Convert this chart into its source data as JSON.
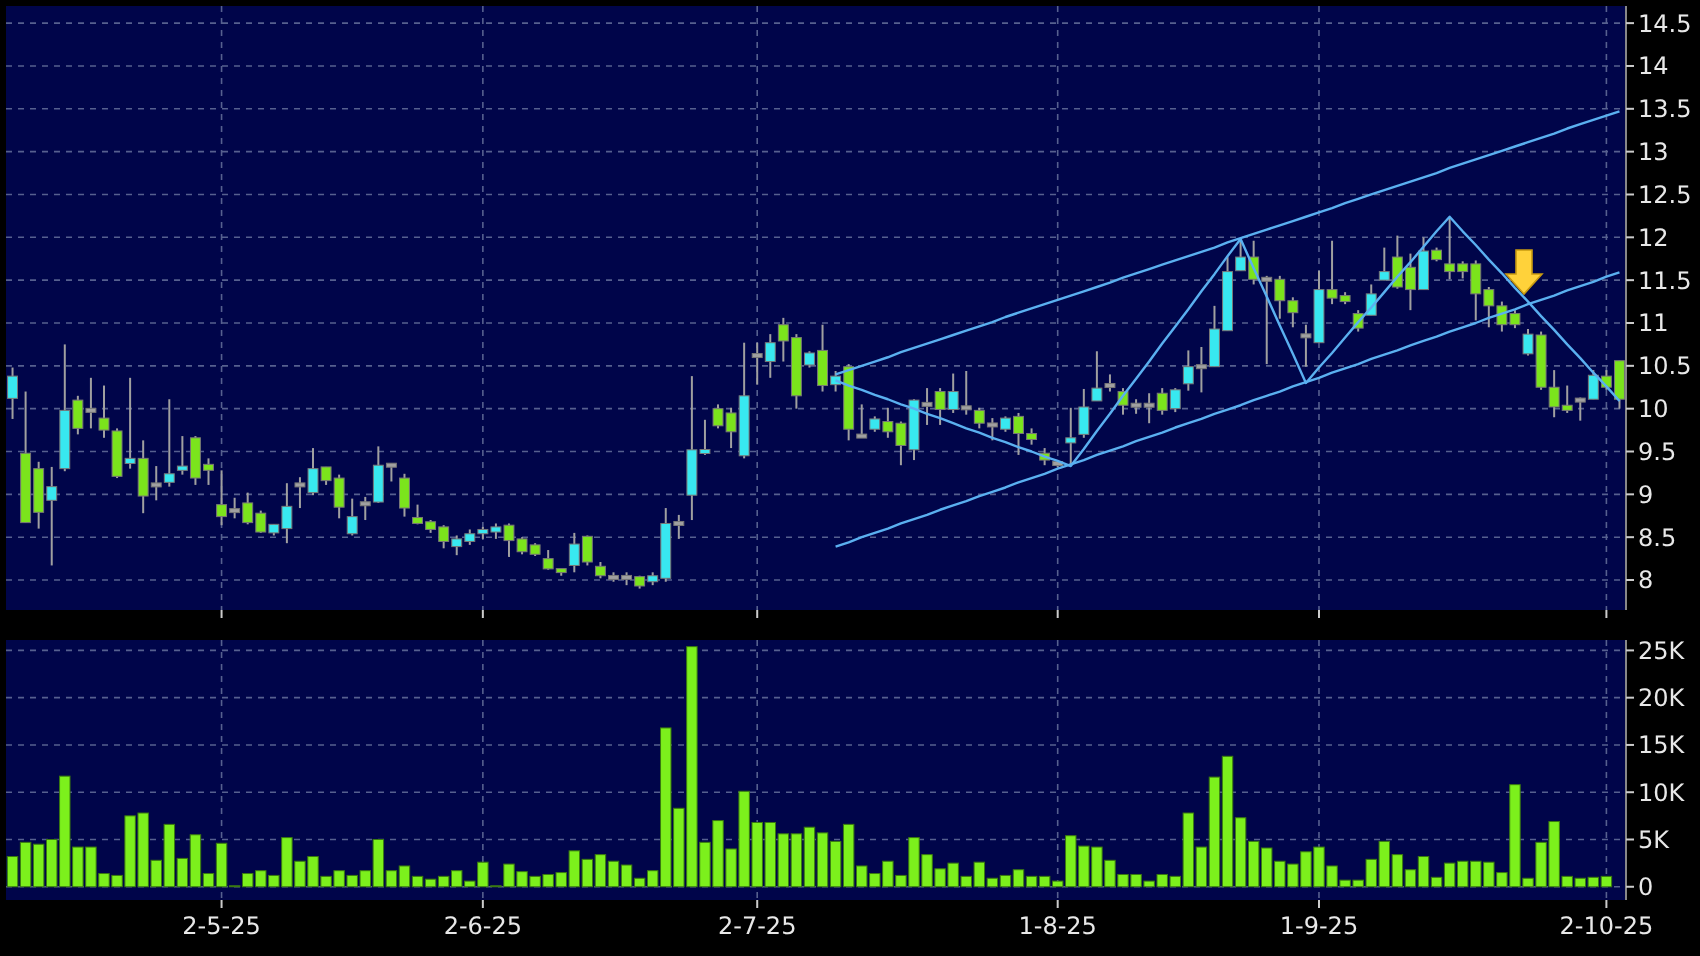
{
  "chart_data": [
    {
      "type": "candlestick",
      "categories": [
        null,
        null,
        null,
        null,
        null,
        null,
        null,
        null,
        null,
        null,
        null,
        null,
        null,
        null,
        null,
        null,
        null,
        null,
        null,
        null,
        null,
        null,
        null,
        null,
        null,
        null,
        null,
        null,
        null,
        null,
        null,
        null,
        null,
        null,
        null,
        null,
        null,
        null,
        null,
        null,
        null,
        null,
        null,
        null,
        null,
        null,
        null,
        null,
        null,
        null,
        null,
        null,
        null,
        null,
        null,
        null,
        null,
        null,
        null,
        null,
        null,
        null,
        null,
        null,
        null,
        null,
        null,
        null,
        null,
        null,
        null,
        null,
        null,
        null,
        null,
        null,
        null,
        null,
        null,
        null,
        null,
        null,
        null,
        null,
        null,
        null,
        null,
        null,
        null,
        null,
        null,
        null,
        null,
        null,
        null,
        null,
        null,
        null,
        null,
        null,
        null,
        null,
        null,
        null,
        null,
        null,
        null,
        null,
        null,
        null,
        null,
        null,
        null,
        null,
        null,
        null,
        null,
        null,
        null,
        null,
        null,
        null,
        null,
        null
      ],
      "ohlc": [
        [
          10.12,
          10.48,
          9.88,
          10.38
        ],
        [
          9.48,
          10.2,
          8.67,
          8.67
        ],
        [
          9.3,
          9.38,
          8.6,
          8.79
        ],
        [
          8.93,
          9.32,
          8.17,
          9.09
        ],
        [
          9.3,
          10.75,
          9.27,
          9.98
        ],
        [
          10.1,
          10.15,
          9.7,
          9.77
        ],
        [
          9.98,
          10.36,
          9.77,
          9.98
        ],
        [
          9.89,
          10.27,
          9.66,
          9.75
        ],
        [
          9.74,
          9.77,
          9.19,
          9.21
        ],
        [
          9.36,
          10.36,
          9.3,
          9.42
        ],
        [
          9.42,
          9.63,
          8.78,
          8.98
        ],
        [
          9.11,
          9.33,
          8.93,
          9.11
        ],
        [
          9.14,
          10.11,
          9.09,
          9.24
        ],
        [
          9.28,
          9.68,
          9.23,
          9.33
        ],
        [
          9.66,
          9.68,
          9.11,
          9.19
        ],
        [
          9.35,
          9.42,
          9.11,
          9.28
        ],
        [
          8.88,
          9.28,
          8.64,
          8.74
        ],
        [
          8.81,
          8.96,
          8.72,
          8.81
        ],
        [
          8.9,
          9.02,
          8.65,
          8.67
        ],
        [
          8.78,
          8.81,
          8.55,
          8.56
        ],
        [
          8.55,
          8.65,
          8.52,
          8.65
        ],
        [
          8.6,
          9.13,
          8.43,
          8.86
        ],
        [
          9.11,
          9.2,
          8.84,
          9.11
        ],
        [
          9.02,
          9.54,
          8.99,
          9.3
        ],
        [
          9.32,
          9.32,
          9.11,
          9.16
        ],
        [
          9.19,
          9.23,
          8.72,
          8.85
        ],
        [
          8.54,
          8.95,
          8.52,
          8.74
        ],
        [
          8.89,
          8.97,
          8.7,
          8.89
        ],
        [
          8.91,
          9.56,
          8.9,
          9.34
        ],
        [
          9.34,
          9.34,
          9.15,
          9.34
        ],
        [
          9.19,
          9.24,
          8.74,
          8.84
        ],
        [
          8.73,
          8.88,
          8.65,
          8.66
        ],
        [
          8.68,
          8.7,
          8.55,
          8.59
        ],
        [
          8.62,
          8.64,
          8.37,
          8.45
        ],
        [
          8.39,
          8.52,
          8.29,
          8.48
        ],
        [
          8.45,
          8.59,
          8.41,
          8.54
        ],
        [
          8.54,
          8.62,
          8.48,
          8.59
        ],
        [
          8.56,
          8.66,
          8.48,
          8.62
        ],
        [
          8.64,
          8.66,
          8.27,
          8.46
        ],
        [
          8.48,
          8.5,
          8.3,
          8.33
        ],
        [
          8.41,
          8.43,
          8.28,
          8.3
        ],
        [
          8.25,
          8.35,
          8.12,
          8.13
        ],
        [
          8.13,
          8.13,
          8.05,
          8.09
        ],
        [
          8.17,
          8.55,
          8.09,
          8.42
        ],
        [
          8.51,
          8.52,
          8.17,
          8.21
        ],
        [
          8.16,
          8.21,
          8.02,
          8.05
        ],
        [
          8.03,
          8.09,
          7.98,
          8.03
        ],
        [
          8.03,
          8.09,
          7.94,
          8.03
        ],
        [
          8.04,
          8.05,
          7.9,
          7.93
        ],
        [
          7.98,
          8.09,
          7.94,
          8.05
        ],
        [
          8.02,
          8.84,
          7.98,
          8.66
        ],
        [
          8.66,
          8.76,
          8.48,
          8.66
        ],
        [
          8.99,
          10.38,
          8.7,
          9.52
        ],
        [
          9.48,
          9.87,
          9.46,
          9.52
        ],
        [
          10.0,
          10.05,
          9.77,
          9.8
        ],
        [
          9.95,
          10.01,
          9.54,
          9.73
        ],
        [
          9.45,
          10.77,
          9.42,
          10.15
        ],
        [
          10.62,
          10.77,
          10.28,
          10.62
        ],
        [
          10.55,
          10.87,
          10.36,
          10.77
        ],
        [
          10.98,
          11.06,
          10.55,
          10.79
        ],
        [
          10.83,
          10.87,
          10.0,
          10.15
        ],
        [
          10.51,
          10.67,
          10.48,
          10.65
        ],
        [
          10.68,
          10.98,
          10.2,
          10.27
        ],
        [
          10.28,
          10.44,
          10.2,
          10.38
        ],
        [
          10.49,
          10.52,
          9.63,
          9.76
        ],
        [
          9.68,
          10.05,
          9.66,
          9.68
        ],
        [
          9.76,
          9.91,
          9.73,
          9.88
        ],
        [
          9.85,
          10.01,
          9.66,
          9.73
        ],
        [
          9.83,
          9.85,
          9.34,
          9.57
        ],
        [
          9.52,
          10.11,
          9.4,
          10.1
        ],
        [
          10.05,
          10.24,
          9.81,
          10.05
        ],
        [
          10.2,
          10.24,
          9.81,
          9.99
        ],
        [
          9.99,
          10.41,
          9.95,
          10.2
        ],
        [
          10.01,
          10.44,
          9.93,
          10.01
        ],
        [
          9.98,
          10.01,
          9.77,
          9.83
        ],
        [
          9.81,
          9.89,
          9.63,
          9.81
        ],
        [
          9.76,
          9.91,
          9.73,
          9.89
        ],
        [
          9.91,
          9.95,
          9.46,
          9.71
        ],
        [
          9.71,
          9.77,
          9.58,
          9.64
        ],
        [
          9.48,
          9.54,
          9.34,
          9.4
        ],
        [
          9.36,
          9.38,
          9.32,
          9.36
        ],
        [
          9.6,
          10.01,
          9.34,
          9.66
        ],
        [
          9.7,
          10.23,
          9.66,
          10.02
        ],
        [
          10.09,
          10.67,
          10.09,
          10.24
        ],
        [
          10.27,
          10.4,
          10.2,
          10.27
        ],
        [
          10.2,
          10.24,
          9.93,
          10.04
        ],
        [
          10.04,
          10.11,
          9.94,
          10.04
        ],
        [
          10.04,
          10.18,
          9.83,
          10.04
        ],
        [
          10.18,
          10.24,
          9.93,
          9.98
        ],
        [
          10.0,
          10.24,
          9.96,
          10.22
        ],
        [
          10.29,
          10.68,
          10.21,
          10.49
        ],
        [
          10.49,
          10.72,
          10.19,
          10.49
        ],
        [
          10.49,
          11.2,
          10.49,
          10.93
        ],
        [
          10.91,
          11.77,
          10.91,
          11.6
        ],
        [
          11.61,
          11.96,
          11.61,
          11.77
        ],
        [
          11.77,
          11.96,
          11.45,
          11.51
        ],
        [
          11.51,
          11.55,
          10.52,
          11.51
        ],
        [
          11.51,
          11.55,
          11.05,
          11.26
        ],
        [
          11.26,
          11.3,
          10.95,
          11.12
        ],
        [
          10.85,
          10.98,
          10.49,
          10.85
        ],
        [
          10.77,
          11.61,
          10.77,
          11.39
        ],
        [
          11.39,
          11.96,
          11.22,
          11.29
        ],
        [
          11.32,
          11.36,
          11.22,
          11.25
        ],
        [
          11.11,
          11.15,
          10.9,
          10.94
        ],
        [
          11.09,
          11.45,
          11.09,
          11.34
        ],
        [
          11.5,
          11.88,
          11.5,
          11.6
        ],
        [
          11.77,
          12.02,
          11.4,
          11.42
        ],
        [
          11.65,
          11.81,
          11.15,
          11.39
        ],
        [
          11.39,
          12.0,
          11.39,
          11.84
        ],
        [
          11.85,
          11.88,
          11.72,
          11.74
        ],
        [
          11.69,
          12.23,
          11.51,
          11.6
        ],
        [
          11.69,
          11.72,
          11.52,
          11.6
        ],
        [
          11.69,
          11.73,
          11.03,
          11.34
        ],
        [
          11.39,
          11.42,
          10.95,
          11.2
        ],
        [
          11.2,
          11.25,
          10.9,
          10.98
        ],
        [
          11.11,
          11.15,
          10.94,
          10.98
        ],
        [
          10.64,
          10.93,
          10.62,
          10.87
        ],
        [
          10.86,
          10.9,
          10.22,
          10.25
        ],
        [
          10.25,
          10.45,
          9.9,
          10.02
        ],
        [
          10.04,
          10.27,
          9.95,
          9.98
        ],
        [
          10.1,
          10.13,
          9.86,
          10.1
        ],
        [
          10.11,
          10.45,
          10.11,
          10.39
        ],
        [
          10.38,
          10.45,
          10.22,
          10.25
        ],
        [
          10.56,
          10.56,
          10.0,
          10.11
        ]
      ],
      "colors": [
        "#38e8f0",
        "#7be41c",
        "#7be41c",
        "#38e8f0",
        "#38e8f0",
        "#7be41c",
        "#a0a0a0",
        "#7be41c",
        "#7be41c",
        "#38e8f0",
        "#7be41c",
        "#a0a0a0",
        "#38e8f0",
        "#38e8f0",
        "#7be41c",
        "#7be41c",
        "#7be41c",
        "#a0a0a0",
        "#7be41c",
        "#7be41c",
        "#38e8f0",
        "#38e8f0",
        "#a0a0a0",
        "#38e8f0",
        "#7be41c",
        "#7be41c",
        "#38e8f0",
        "#a0a0a0",
        "#38e8f0",
        "#a0a0a0",
        "#7be41c",
        "#7be41c",
        "#7be41c",
        "#7be41c",
        "#38e8f0",
        "#38e8f0",
        "#38e8f0",
        "#38e8f0",
        "#7be41c",
        "#7be41c",
        "#7be41c",
        "#7be41c",
        "#7be41c",
        "#38e8f0",
        "#7be41c",
        "#7be41c",
        "#a0a0a0",
        "#a0a0a0",
        "#7be41c",
        "#38e8f0",
        "#38e8f0",
        "#a0a0a0",
        "#38e8f0",
        "#38e8f0",
        "#7be41c",
        "#7be41c",
        "#38e8f0",
        "#a0a0a0",
        "#38e8f0",
        "#7be41c",
        "#7be41c",
        "#38e8f0",
        "#7be41c",
        "#38e8f0",
        "#7be41c",
        "#a0a0a0",
        "#38e8f0",
        "#7be41c",
        "#7be41c",
        "#38e8f0",
        "#a0a0a0",
        "#7be41c",
        "#38e8f0",
        "#a0a0a0",
        "#7be41c",
        "#a0a0a0",
        "#38e8f0",
        "#7be41c",
        "#7be41c",
        "#7be41c",
        "#a0a0a0",
        "#38e8f0",
        "#38e8f0",
        "#38e8f0",
        "#a0a0a0",
        "#7be41c",
        "#a0a0a0",
        "#a0a0a0",
        "#7be41c",
        "#38e8f0",
        "#38e8f0",
        "#a0a0a0",
        "#38e8f0",
        "#38e8f0",
        "#38e8f0",
        "#7be41c",
        "#a0a0a0",
        "#7be41c",
        "#7be41c",
        "#a0a0a0",
        "#38e8f0",
        "#7be41c",
        "#7be41c",
        "#7be41c",
        "#38e8f0",
        "#38e8f0",
        "#7be41c",
        "#7be41c",
        "#38e8f0",
        "#7be41c",
        "#7be41c",
        "#7be41c",
        "#7be41c",
        "#7be41c",
        "#7be41c",
        "#7be41c",
        "#38e8f0",
        "#7be41c",
        "#7be41c",
        "#7be41c",
        "#a0a0a0",
        "#38e8f0",
        "#7be41c",
        "#7be41c"
      ],
      "series": [
        {
          "type": "line",
          "color": "#5ab0f0",
          "values": [
            null,
            null,
            null,
            null,
            null,
            null,
            null,
            null,
            null,
            null,
            null,
            null,
            null,
            null,
            null,
            null,
            null,
            null,
            null,
            null,
            null,
            null,
            null,
            null,
            null,
            null,
            null,
            null,
            null,
            null,
            null,
            null,
            null,
            null,
            null,
            null,
            null,
            null,
            null,
            null,
            null,
            null,
            null,
            null,
            null,
            null,
            null,
            null,
            null,
            null,
            null,
            null,
            null,
            null,
            null,
            null,
            null,
            null,
            null,
            null,
            null,
            null,
            null,
            10.4,
            10.45,
            10.5,
            10.55,
            10.6,
            10.66,
            10.71,
            10.76,
            10.81,
            10.86,
            10.91,
            10.96,
            11.01,
            11.07,
            11.12,
            11.17,
            11.22,
            11.27,
            11.32,
            11.37,
            11.42,
            11.47,
            11.53,
            11.58,
            11.63,
            11.68,
            11.73,
            11.78,
            11.83,
            11.88,
            11.94,
            11.99,
            12.04,
            12.09,
            12.14,
            12.19,
            12.24,
            12.29,
            12.34,
            12.4,
            12.45,
            12.5,
            12.55,
            12.6,
            12.65,
            12.7,
            12.75,
            12.81,
            12.86,
            12.91,
            12.96,
            13.01,
            13.06,
            13.11,
            13.16,
            13.21,
            13.27,
            13.32,
            13.37,
            13.42,
            13.47
          ]
        },
        {
          "type": "line",
          "color": "#5ab0f0",
          "values": [
            null,
            null,
            null,
            null,
            null,
            null,
            null,
            null,
            null,
            null,
            null,
            null,
            null,
            null,
            null,
            null,
            null,
            null,
            null,
            null,
            null,
            null,
            null,
            null,
            null,
            null,
            null,
            null,
            null,
            null,
            null,
            null,
            null,
            null,
            null,
            null,
            null,
            null,
            null,
            null,
            null,
            null,
            null,
            null,
            null,
            null,
            null,
            null,
            null,
            null,
            null,
            null,
            null,
            null,
            null,
            null,
            null,
            null,
            null,
            null,
            null,
            null,
            null,
            8.39,
            8.44,
            8.5,
            8.55,
            8.6,
            8.66,
            8.71,
            8.76,
            8.82,
            8.87,
            8.92,
            8.98,
            9.03,
            9.08,
            9.14,
            9.19,
            9.24,
            9.3,
            9.35,
            9.4,
            9.46,
            9.51,
            9.56,
            9.62,
            9.67,
            9.72,
            9.78,
            9.83,
            9.88,
            9.94,
            9.99,
            10.04,
            10.1,
            10.15,
            10.2,
            10.26,
            10.31,
            10.36,
            10.42,
            10.47,
            10.52,
            10.58,
            10.63,
            10.68,
            10.74,
            10.79,
            10.84,
            10.9,
            10.95,
            11.0,
            11.06,
            11.11,
            11.16,
            11.22,
            11.27,
            11.32,
            11.38,
            11.43,
            11.48,
            11.54,
            11.59
          ]
        },
        {
          "type": "line",
          "color": "#5ab0f0",
          "values": [
            null,
            null,
            null,
            null,
            null,
            null,
            null,
            null,
            null,
            null,
            null,
            null,
            null,
            null,
            null,
            null,
            null,
            null,
            null,
            null,
            null,
            null,
            null,
            null,
            null,
            null,
            null,
            null,
            null,
            null,
            null,
            null,
            null,
            null,
            null,
            null,
            null,
            null,
            null,
            null,
            null,
            null,
            null,
            null,
            null,
            null,
            null,
            null,
            null,
            null,
            null,
            null,
            null,
            null,
            null,
            null,
            null,
            null,
            null,
            null,
            null,
            null,
            null,
            10.33,
            10.27,
            10.22,
            10.16,
            10.11,
            10.05,
            10.0,
            9.94,
            9.89,
            9.83,
            9.77,
            9.72,
            9.66,
            9.61,
            9.55,
            9.5,
            9.44,
            9.39,
            9.33,
            9.53,
            9.74,
            9.94,
            10.15,
            10.35,
            10.55,
            10.76,
            10.96,
            11.16,
            11.37,
            11.57,
            11.78,
            11.98,
            11.64,
            11.31,
            10.97,
            10.64,
            10.3,
            10.48,
            10.65,
            10.83,
            11.01,
            11.18,
            11.36,
            11.54,
            11.71,
            11.89,
            12.07,
            12.24,
            12.07,
            11.91,
            11.74,
            11.58,
            11.41,
            11.25,
            11.08,
            10.92,
            10.75,
            10.59,
            10.42,
            10.26,
            10.09
          ]
        }
      ],
      "ylim": [
        7.65,
        14.7
      ],
      "yticks": [
        8,
        8.5,
        9,
        9.5,
        10,
        10.5,
        11,
        11.5,
        12,
        12.5,
        13,
        13.5,
        14,
        14.5
      ],
      "grid": true,
      "tick_labels": "y"
    },
    {
      "type": "bar",
      "categories": [
        null,
        null,
        null,
        null,
        null,
        null,
        null,
        null,
        null,
        null,
        null,
        null,
        null,
        null,
        null,
        null,
        "2-5-25",
        null,
        null,
        null,
        null,
        null,
        null,
        null,
        null,
        null,
        null,
        null,
        null,
        null,
        null,
        null,
        null,
        null,
        null,
        null,
        "2-6-25",
        null,
        null,
        null,
        null,
        null,
        null,
        null,
        null,
        null,
        null,
        null,
        null,
        null,
        null,
        null,
        null,
        null,
        null,
        null,
        null,
        "2-7-25",
        null,
        null,
        null,
        null,
        null,
        null,
        null,
        null,
        null,
        null,
        null,
        null,
        null,
        null,
        null,
        null,
        null,
        null,
        null,
        null,
        null,
        null,
        "1-8-25",
        null,
        null,
        null,
        null,
        null,
        null,
        null,
        null,
        null,
        null,
        null,
        null,
        null,
        null,
        null,
        null,
        null,
        null,
        null,
        "1-9-25",
        null,
        null,
        null,
        null,
        null,
        null,
        null,
        null,
        null,
        null,
        null,
        null,
        null,
        null,
        null,
        null,
        null,
        null,
        null,
        null,
        null,
        "2-10-25",
        null
      ],
      "series": [
        {
          "color": "#7cf01c",
          "values": [
            3.2,
            4.7,
            4.5,
            5.0,
            11.7,
            4.2,
            4.2,
            1.4,
            1.2,
            7.5,
            7.8,
            2.8,
            6.6,
            3.0,
            5.5,
            1.4,
            4.6,
            0.1,
            1.4,
            1.7,
            1.2,
            5.2,
            2.7,
            3.2,
            1.1,
            1.7,
            1.2,
            1.7,
            5.0,
            1.7,
            2.2,
            1.1,
            0.8,
            1.1,
            1.7,
            0.6,
            2.6,
            0.1,
            2.4,
            1.6,
            1.1,
            1.3,
            1.5,
            3.8,
            2.9,
            3.4,
            2.7,
            2.3,
            0.9,
            1.7,
            16.8,
            8.3,
            25.4,
            4.7,
            7.0,
            4.0,
            10.1,
            6.8,
            6.8,
            5.6,
            5.6,
            6.3,
            5.7,
            4.8,
            6.6,
            2.2,
            1.4,
            2.7,
            1.2,
            5.2,
            3.4,
            1.9,
            2.5,
            1.1,
            2.6,
            0.9,
            1.2,
            1.8,
            1.1,
            1.1,
            0.6,
            5.4,
            4.3,
            4.2,
            2.8,
            1.3,
            1.3,
            0.6,
            1.3,
            1.1,
            7.8,
            4.2,
            11.6,
            13.8,
            7.3,
            4.8,
            4.1,
            2.7,
            2.4,
            3.7,
            4.2,
            2.2,
            0.7,
            0.7,
            2.9,
            4.8,
            3.4,
            1.8,
            3.2,
            1.0,
            2.5,
            2.7,
            2.7,
            2.6,
            1.5,
            10.8,
            0.9,
            4.7,
            6.9,
            1.1,
            0.9,
            1.0,
            1.1,
            null
          ]
        }
      ],
      "ylim": [
        -1.4,
        26.1
      ],
      "yticks": [
        {
          "value": 0,
          "label": "0"
        },
        {
          "value": 5,
          "label": "5K"
        },
        {
          "value": 10,
          "label": "10K"
        },
        {
          "value": 15,
          "label": "15K"
        },
        {
          "value": 20,
          "label": "20K"
        },
        {
          "value": 25,
          "label": "25K"
        }
      ],
      "grid": true
    }
  ]
}
